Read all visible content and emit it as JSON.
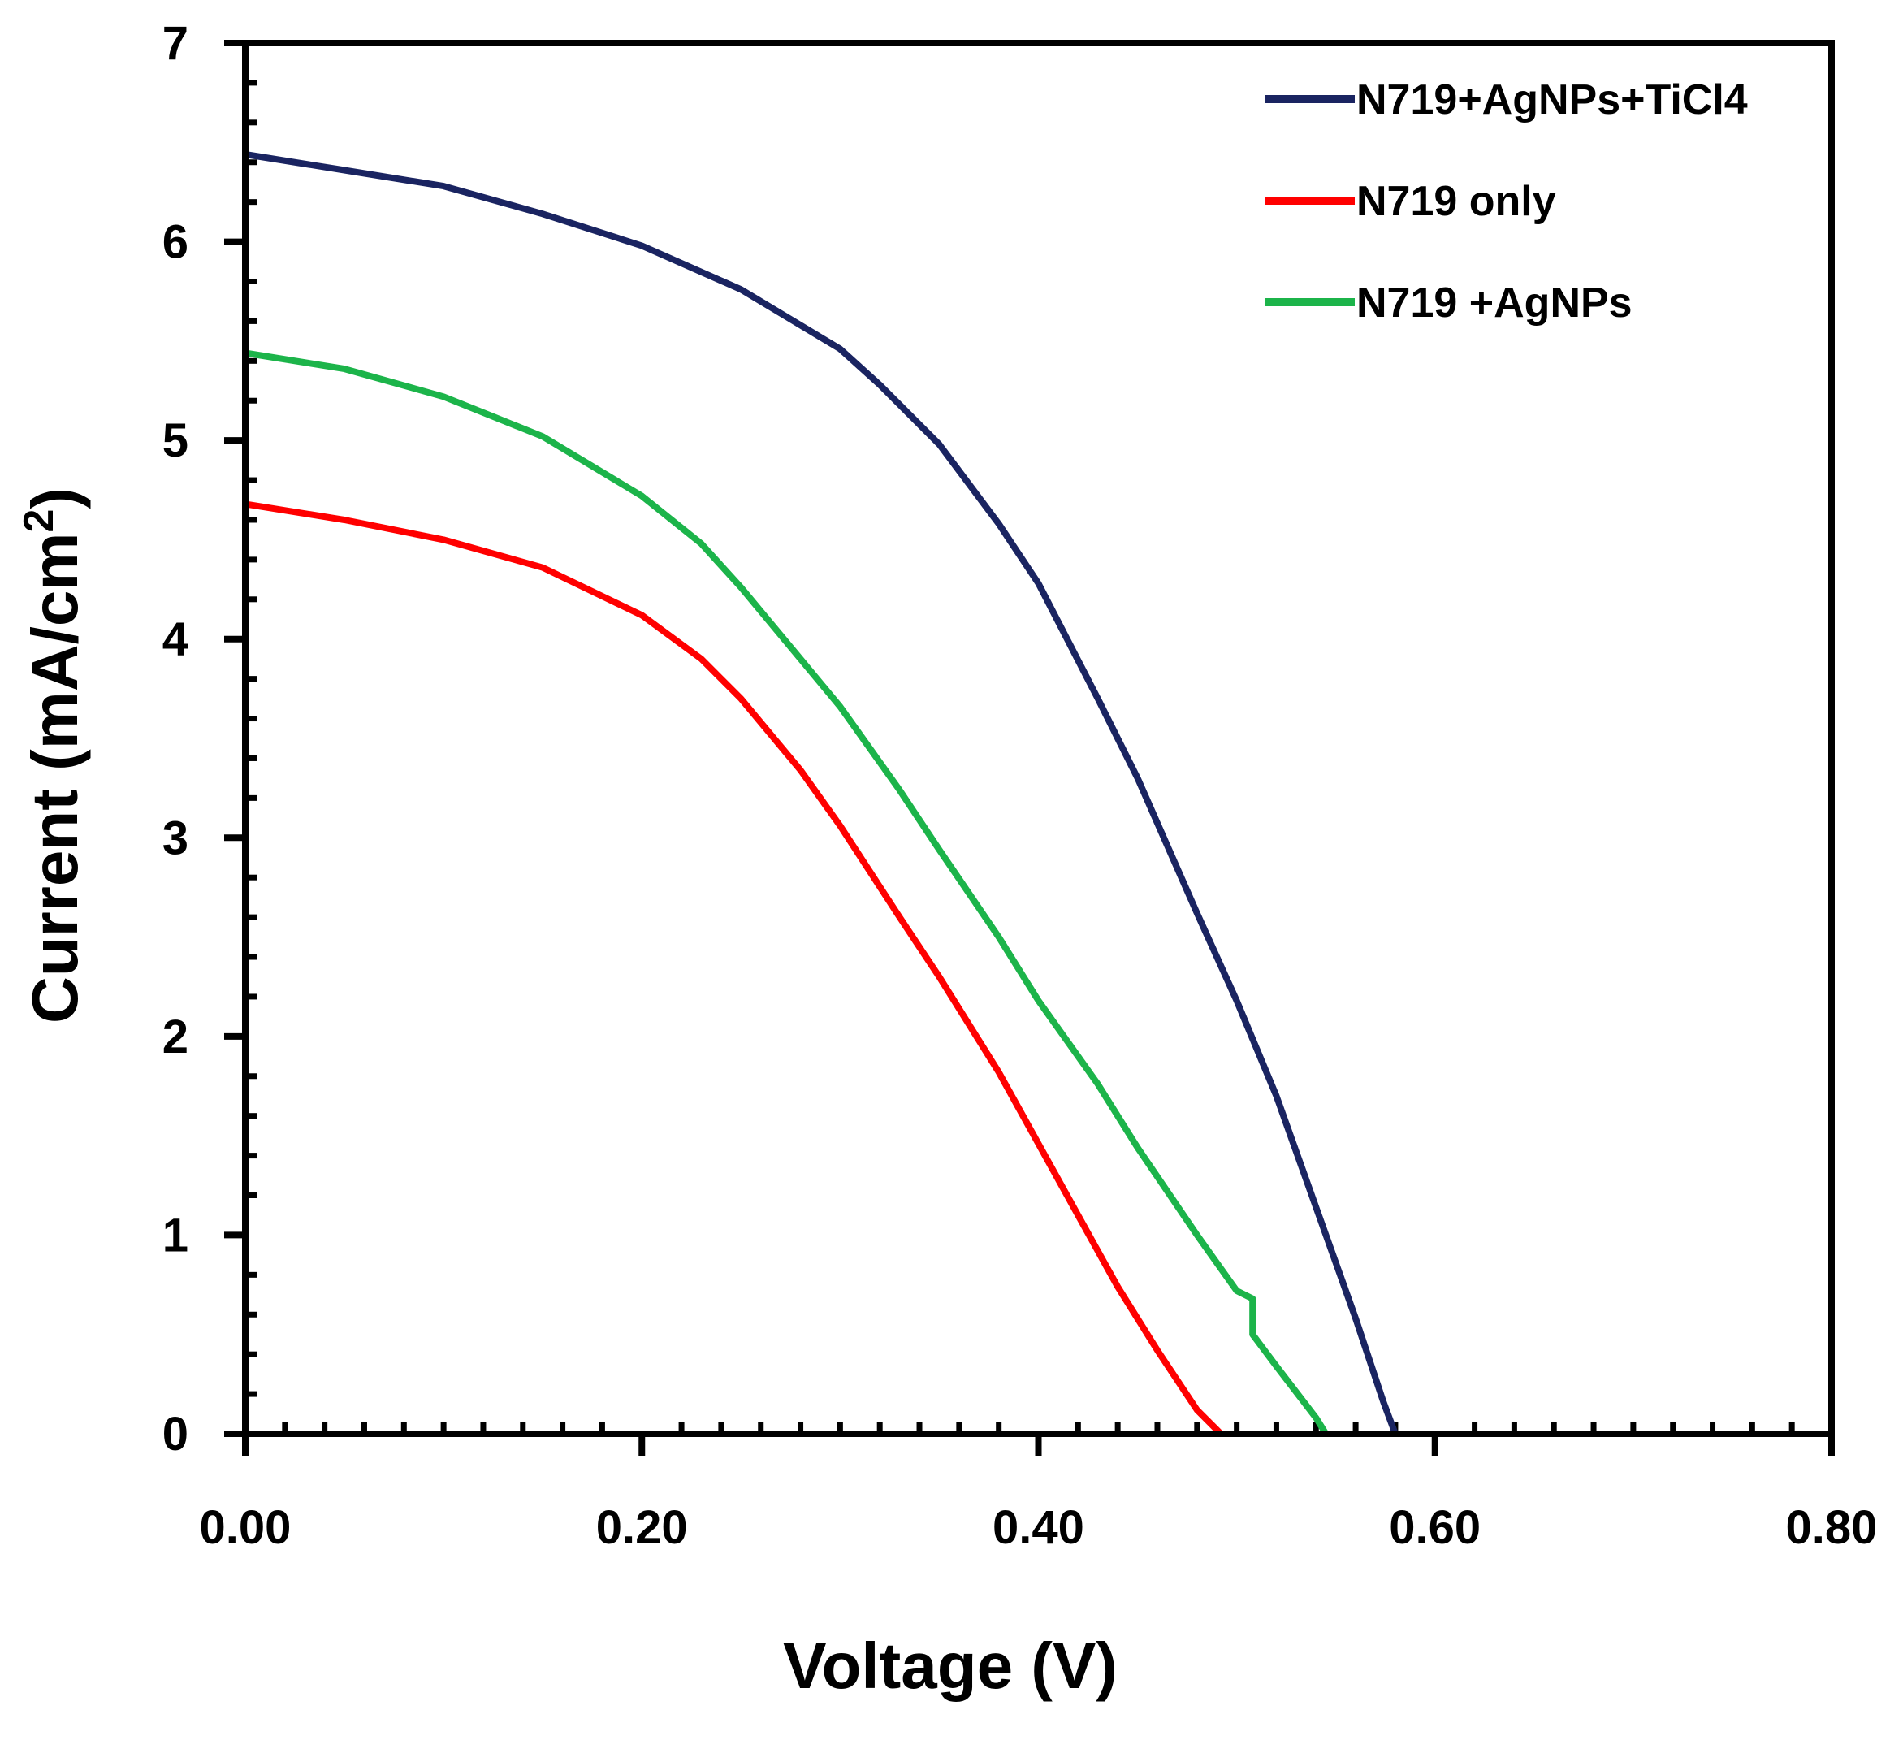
{
  "chart_data": {
    "type": "line",
    "title": "",
    "xlabel": "Voltage (V)",
    "ylabel": {
      "prefix": "Current (mA/cm",
      "superscript": "2",
      "suffix": ")"
    },
    "xlim": [
      0,
      0.8
    ],
    "ylim": [
      0,
      7
    ],
    "x_ticks": [
      0.0,
      0.2,
      0.4,
      0.6,
      0.8
    ],
    "x_tick_labels": [
      "0.00",
      "0.20",
      "0.40",
      "0.60",
      "0.80"
    ],
    "y_ticks": [
      0,
      1,
      2,
      3,
      4,
      5,
      6,
      7
    ],
    "y_tick_labels": [
      "0",
      "1",
      "2",
      "3",
      "4",
      "5",
      "6",
      "7"
    ],
    "grid": false,
    "legend_position": "top-right",
    "series": [
      {
        "name": "N719+AgNPs+TiCl4",
        "color": "#1a2461",
        "points": [
          [
            0.0,
            6.44
          ],
          [
            0.05,
            6.36
          ],
          [
            0.1,
            6.28
          ],
          [
            0.15,
            6.14
          ],
          [
            0.2,
            5.98
          ],
          [
            0.25,
            5.76
          ],
          [
            0.3,
            5.46
          ],
          [
            0.32,
            5.28
          ],
          [
            0.35,
            4.98
          ],
          [
            0.38,
            4.58
          ],
          [
            0.4,
            4.28
          ],
          [
            0.43,
            3.7
          ],
          [
            0.45,
            3.3
          ],
          [
            0.48,
            2.62
          ],
          [
            0.5,
            2.18
          ],
          [
            0.52,
            1.7
          ],
          [
            0.54,
            1.14
          ],
          [
            0.56,
            0.58
          ],
          [
            0.574,
            0.16
          ],
          [
            0.58,
            0.0
          ]
        ]
      },
      {
        "name": "N719 only",
        "color": "#ff0000",
        "points": [
          [
            0.0,
            4.68
          ],
          [
            0.05,
            4.6
          ],
          [
            0.1,
            4.5
          ],
          [
            0.15,
            4.36
          ],
          [
            0.2,
            4.12
          ],
          [
            0.23,
            3.9
          ],
          [
            0.25,
            3.7
          ],
          [
            0.28,
            3.34
          ],
          [
            0.3,
            3.06
          ],
          [
            0.33,
            2.6
          ],
          [
            0.35,
            2.3
          ],
          [
            0.38,
            1.82
          ],
          [
            0.4,
            1.46
          ],
          [
            0.42,
            1.1
          ],
          [
            0.44,
            0.74
          ],
          [
            0.46,
            0.42
          ],
          [
            0.48,
            0.12
          ],
          [
            0.492,
            0.0
          ]
        ]
      },
      {
        "name": "N719 +AgNPs",
        "color": "#1cb44a",
        "points": [
          [
            0.0,
            5.44
          ],
          [
            0.05,
            5.36
          ],
          [
            0.1,
            5.22
          ],
          [
            0.15,
            5.02
          ],
          [
            0.2,
            4.72
          ],
          [
            0.23,
            4.48
          ],
          [
            0.25,
            4.26
          ],
          [
            0.28,
            3.9
          ],
          [
            0.3,
            3.66
          ],
          [
            0.33,
            3.24
          ],
          [
            0.35,
            2.94
          ],
          [
            0.38,
            2.5
          ],
          [
            0.4,
            2.18
          ],
          [
            0.43,
            1.76
          ],
          [
            0.45,
            1.44
          ],
          [
            0.48,
            1.0
          ],
          [
            0.5,
            0.72
          ],
          [
            0.508,
            0.68
          ],
          [
            0.508,
            0.5
          ],
          [
            0.52,
            0.34
          ],
          [
            0.54,
            0.08
          ],
          [
            0.545,
            0.0
          ]
        ]
      }
    ]
  }
}
